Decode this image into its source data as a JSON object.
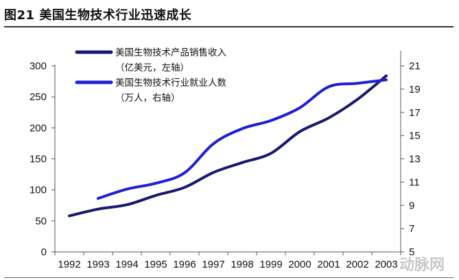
{
  "figure": {
    "title": "图21 美国生物技术行业迅速成长",
    "watermark": "动脉网"
  },
  "chart_data": {
    "type": "line",
    "x": [
      "1992",
      "1993",
      "1994",
      "1995",
      "1996",
      "1997",
      "1998",
      "1999",
      "2000",
      "2001",
      "2002",
      "2003"
    ],
    "series": [
      {
        "name": "美国生物技术产品销售收入",
        "unit_note": "（亿美元，左轴）",
        "axis": "left",
        "color": "#191970",
        "values": [
          58,
          69,
          76,
          91,
          104,
          128,
          144,
          159,
          194,
          216,
          246,
          284
        ]
      },
      {
        "name": "美国生物技术行业就业人数",
        "unit_note": "（万人，右轴）",
        "axis": "right",
        "color": "#1f1fd6",
        "values": [
          null,
          9.6,
          10.4,
          10.9,
          11.8,
          14.3,
          15.6,
          16.3,
          17.4,
          19.2,
          19.5,
          19.8
        ]
      }
    ],
    "y_left": {
      "ticks": [
        "0",
        "50",
        "100",
        "150",
        "200",
        "250",
        "300"
      ],
      "ylim": [
        0,
        300
      ]
    },
    "y_right": {
      "ticks": [
        "5",
        "7",
        "9",
        "11",
        "13",
        "15",
        "17",
        "19",
        "21"
      ],
      "ylim": [
        5,
        21
      ]
    },
    "grid": false,
    "legend": "top-left"
  }
}
